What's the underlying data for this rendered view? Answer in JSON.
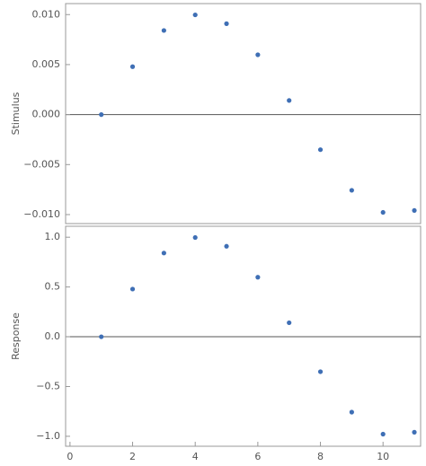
{
  "chart_data": [
    {
      "type": "scatter",
      "y_label": "Stimulus",
      "color": "#3f6fb5",
      "x": [
        1,
        2,
        3,
        4,
        5,
        6,
        7,
        8,
        9,
        10,
        11
      ],
      "values": [
        0,
        0.00479,
        0.00841,
        0.00997,
        0.00909,
        0.00598,
        0.00141,
        -0.00351,
        -0.00757,
        -0.00978,
        -0.00959
      ],
      "xlim": [
        -0.14,
        11.2
      ],
      "ylim": [
        -0.0109,
        0.0111
      ],
      "yticks": [
        {
          "value": 0.01,
          "label": "0.010"
        },
        {
          "value": 0.005,
          "label": "0.005"
        },
        {
          "value": 0,
          "label": "0.000"
        },
        {
          "value": -0.005,
          "label": "−0.005"
        },
        {
          "value": -0.01,
          "label": "−0.010"
        }
      ]
    },
    {
      "type": "scatter",
      "y_label": "Response",
      "color": "#3f6fb5",
      "x": [
        1,
        2,
        3,
        4,
        5,
        6,
        7,
        8,
        9,
        10,
        11
      ],
      "values": [
        0,
        0.479,
        0.841,
        0.997,
        0.909,
        0.598,
        0.141,
        -0.351,
        -0.757,
        -0.978,
        -0.959
      ],
      "xlim": [
        -0.14,
        11.2
      ],
      "ylim": [
        -1.1,
        1.11
      ],
      "yticks": [
        {
          "value": 1,
          "label": "1.0"
        },
        {
          "value": 0.5,
          "label": "0.5"
        },
        {
          "value": 0,
          "label": "0.0"
        },
        {
          "value": -0.5,
          "label": "−0.5"
        },
        {
          "value": -1,
          "label": "−1.0"
        }
      ],
      "xticks": [
        0,
        2,
        4,
        6,
        8,
        10
      ]
    }
  ]
}
